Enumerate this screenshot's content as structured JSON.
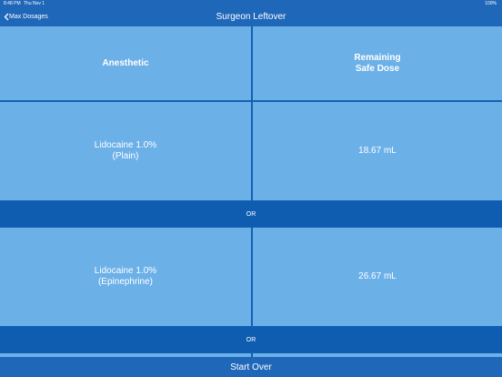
{
  "status_bar": {
    "time": "8:48 PM",
    "date": "Thu Nov 1",
    "battery": "100%"
  },
  "nav": {
    "back": "Max Dosages",
    "title": "Surgeon Leftover"
  },
  "table": {
    "headers": [
      [
        "Anesthetic"
      ],
      [
        "Remaining",
        "Safe Dose"
      ]
    ],
    "rows": [
      {
        "anesthetic": [
          "Lidocaine 1.0%",
          "(Plain)"
        ],
        "dose": "18.67 mL"
      },
      {
        "anesthetic": [
          "Lidocaine 1.0%",
          "(Epinephrine)"
        ],
        "dose": "26.67 mL"
      }
    ],
    "separators": [
      "OR",
      "OR"
    ]
  },
  "footer": {
    "button": "Start Over"
  }
}
